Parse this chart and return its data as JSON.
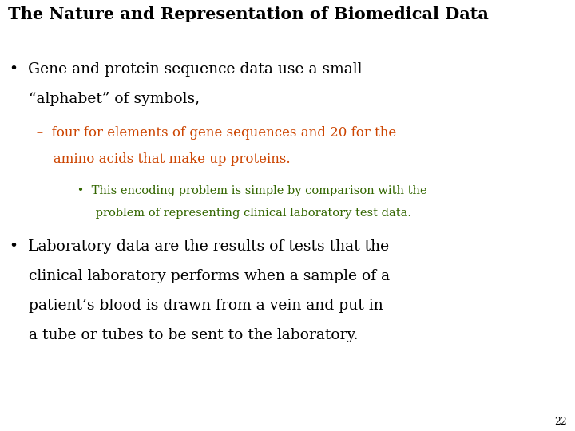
{
  "background_color": "#ffffff",
  "title": "The Nature and Representation of Biomedical Data",
  "title_color": "#000000",
  "title_fontsize": 15,
  "bullet1_line1": "•  Gene and protein sequence data use a small",
  "bullet1_line2": "    “alphabet” of symbols,",
  "bullet1_color": "#000000",
  "bullet1_fontsize": 13.5,
  "sub1_line1": "   –  four for elements of gene sequences and 20 for the",
  "sub1_line2": "       amino acids that make up proteins.",
  "sub1_color": "#cc4400",
  "sub1_fontsize": 12,
  "subsub1_line1": "         •  This encoding problem is simple by comparison with the",
  "subsub1_line2": "              problem of representing clinical laboratory test data.",
  "subsub1_color": "#336600",
  "subsub1_fontsize": 10.5,
  "bullet2_line1": "•  Laboratory data are the results of tests that the",
  "bullet2_line2": "    clinical laboratory performs when a sample of a",
  "bullet2_line3": "    patient’s blood is drawn from a vein and put in",
  "bullet2_line4": "    a tube or tubes to be sent to the laboratory.",
  "bullet2_color": "#000000",
  "bullet2_fontsize": 13.5,
  "page_num": "22",
  "page_num_color": "#000000",
  "page_num_fontsize": 9,
  "figwidth": 7.2,
  "figheight": 5.4,
  "dpi": 100
}
